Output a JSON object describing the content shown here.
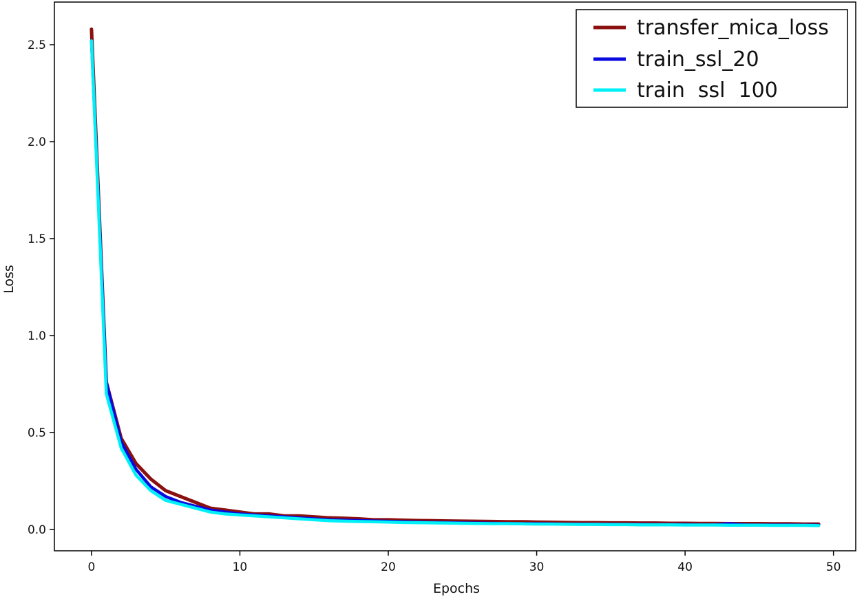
{
  "chart_data": {
    "type": "line",
    "title": "",
    "xlabel": "Epochs",
    "ylabel": "Loss",
    "xlim": [
      -2.5,
      51.5
    ],
    "ylim": [
      -0.11,
      2.72
    ],
    "xticks": [
      0,
      10,
      20,
      30,
      40,
      50
    ],
    "yticks": [
      0.0,
      0.5,
      1.0,
      1.5,
      2.0,
      2.5
    ],
    "xtick_labels": [
      "0",
      "10",
      "20",
      "30",
      "40",
      "50"
    ],
    "ytick_labels": [
      "0.0",
      "0.5",
      "1.0",
      "1.5",
      "2.0",
      "2.5"
    ],
    "grid": false,
    "legend_position": "top-right",
    "x": [
      0,
      1,
      2,
      3,
      4,
      5,
      6,
      7,
      8,
      9,
      10,
      11,
      12,
      13,
      14,
      15,
      16,
      17,
      18,
      19,
      20,
      21,
      22,
      23,
      24,
      25,
      26,
      27,
      28,
      29,
      30,
      31,
      32,
      33,
      34,
      35,
      36,
      37,
      38,
      39,
      40,
      41,
      42,
      43,
      44,
      45,
      46,
      47,
      48,
      49
    ],
    "series": [
      {
        "name": "transfer_mica_loss",
        "color": "#8b1010",
        "values": [
          2.58,
          0.76,
          0.47,
          0.34,
          0.26,
          0.2,
          0.17,
          0.14,
          0.11,
          0.1,
          0.09,
          0.08,
          0.08,
          0.07,
          0.07,
          0.065,
          0.06,
          0.058,
          0.055,
          0.05,
          0.05,
          0.048,
          0.046,
          0.045,
          0.044,
          0.043,
          0.042,
          0.041,
          0.04,
          0.04,
          0.038,
          0.037,
          0.036,
          0.035,
          0.035,
          0.034,
          0.034,
          0.033,
          0.033,
          0.032,
          0.032,
          0.031,
          0.031,
          0.03,
          0.03,
          0.03,
          0.029,
          0.029,
          0.028,
          0.028
        ]
      },
      {
        "name": "train_ssl_20",
        "color": "#0a0ae0",
        "values": [
          2.52,
          0.76,
          0.45,
          0.31,
          0.22,
          0.17,
          0.14,
          0.12,
          0.1,
          0.09,
          0.08,
          0.075,
          0.07,
          0.065,
          0.06,
          0.055,
          0.05,
          0.048,
          0.046,
          0.044,
          0.042,
          0.04,
          0.038,
          0.036,
          0.035,
          0.034,
          0.033,
          0.032,
          0.031,
          0.03,
          0.03,
          0.029,
          0.028,
          0.028,
          0.027,
          0.027,
          0.026,
          0.026,
          0.025,
          0.025,
          0.025,
          0.024,
          0.024,
          0.03,
          0.024,
          0.023,
          0.023,
          0.023,
          0.022,
          0.022
        ]
      },
      {
        "name": "train_ssl_100",
        "color": "#00f0f8",
        "values": [
          2.52,
          0.7,
          0.42,
          0.28,
          0.2,
          0.15,
          0.13,
          0.11,
          0.09,
          0.08,
          0.075,
          0.07,
          0.065,
          0.06,
          0.055,
          0.05,
          0.045,
          0.043,
          0.041,
          0.04,
          0.038,
          0.036,
          0.035,
          0.034,
          0.033,
          0.032,
          0.031,
          0.03,
          0.03,
          0.029,
          0.028,
          0.028,
          0.027,
          0.026,
          0.026,
          0.025,
          0.025,
          0.024,
          0.024,
          0.024,
          0.023,
          0.023,
          0.023,
          0.022,
          0.022,
          0.022,
          0.021,
          0.021,
          0.021,
          0.02
        ]
      }
    ],
    "legend": {
      "labels": [
        "transfer_mica_loss",
        "train_ssl_20",
        "train  ssl  100"
      ]
    }
  }
}
